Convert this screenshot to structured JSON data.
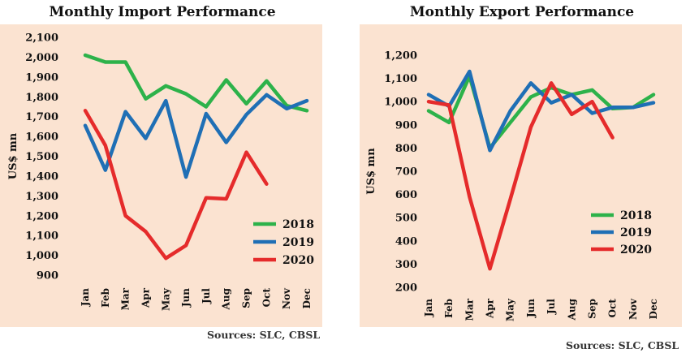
{
  "chart_data": [
    {
      "type": "line",
      "title": "Monthly Import Performance",
      "ylabel": "US$ mn",
      "xlabel": "",
      "categories": [
        "Jan",
        "Feb",
        "Mar",
        "Apr",
        "May",
        "Jun",
        "Jul",
        "Aug",
        "Sep",
        "Oct",
        "Nov",
        "Dec"
      ],
      "ylim": [
        900,
        2100
      ],
      "yticks": [
        900,
        1000,
        1100,
        1200,
        1300,
        1400,
        1500,
        1600,
        1700,
        1800,
        1900,
        2000,
        2100
      ],
      "ytick_labels": [
        "900",
        "1,000",
        "1,100",
        "1,200",
        "1,300",
        "1,400",
        "1,500",
        "1,600",
        "1,700",
        "1,800",
        "1,900",
        "2,000",
        "2,100"
      ],
      "grid": false,
      "legend_position": "bottom-right",
      "series": [
        {
          "name": "2018",
          "color": "#2db24a",
          "values": [
            2010,
            1975,
            1975,
            1790,
            1855,
            1815,
            1750,
            1885,
            1765,
            1880,
            1755,
            1730
          ]
        },
        {
          "name": "2019",
          "color": "#1f6fb5",
          "values": [
            1655,
            1430,
            1725,
            1590,
            1780,
            1395,
            1715,
            1570,
            1710,
            1810,
            1740,
            1780
          ]
        },
        {
          "name": "2020",
          "color": "#e52b2b",
          "values": [
            1730,
            1555,
            1200,
            1120,
            985,
            1050,
            1290,
            1285,
            1520,
            1360,
            null,
            null
          ]
        }
      ],
      "source": "Sources: SLC, CBSL"
    },
    {
      "type": "line",
      "title": "Monthly Export Performance",
      "ylabel": "US$ mn",
      "xlabel": "",
      "categories": [
        "Jan",
        "Feb",
        "Mar",
        "Apr",
        "May",
        "Jun",
        "Jul",
        "Aug",
        "Sep",
        "Oct",
        "Nov",
        "Dec"
      ],
      "ylim": [
        200,
        1200
      ],
      "yticks": [
        200,
        300,
        400,
        500,
        600,
        700,
        800,
        900,
        1000,
        1100,
        1200
      ],
      "ytick_labels": [
        "200",
        "300",
        "400",
        "500",
        "600",
        "700",
        "800",
        "900",
        "1,000",
        "1,100",
        "1,200"
      ],
      "grid": false,
      "legend_position": "bottom-right",
      "series": [
        {
          "name": "2018",
          "color": "#2db24a",
          "values": [
            960,
            910,
            1110,
            800,
            910,
            1020,
            1060,
            1030,
            1050,
            970,
            975,
            1030
          ]
        },
        {
          "name": "2019",
          "color": "#1f6fb5",
          "values": [
            1030,
            980,
            1130,
            790,
            960,
            1080,
            995,
            1030,
            950,
            975,
            975,
            995
          ]
        },
        {
          "name": "2020",
          "color": "#e52b2b",
          "values": [
            1000,
            985,
            590,
            280,
            580,
            890,
            1080,
            945,
            1000,
            845,
            null,
            null
          ]
        }
      ],
      "source": "Sources: SLC, CBSL"
    }
  ]
}
